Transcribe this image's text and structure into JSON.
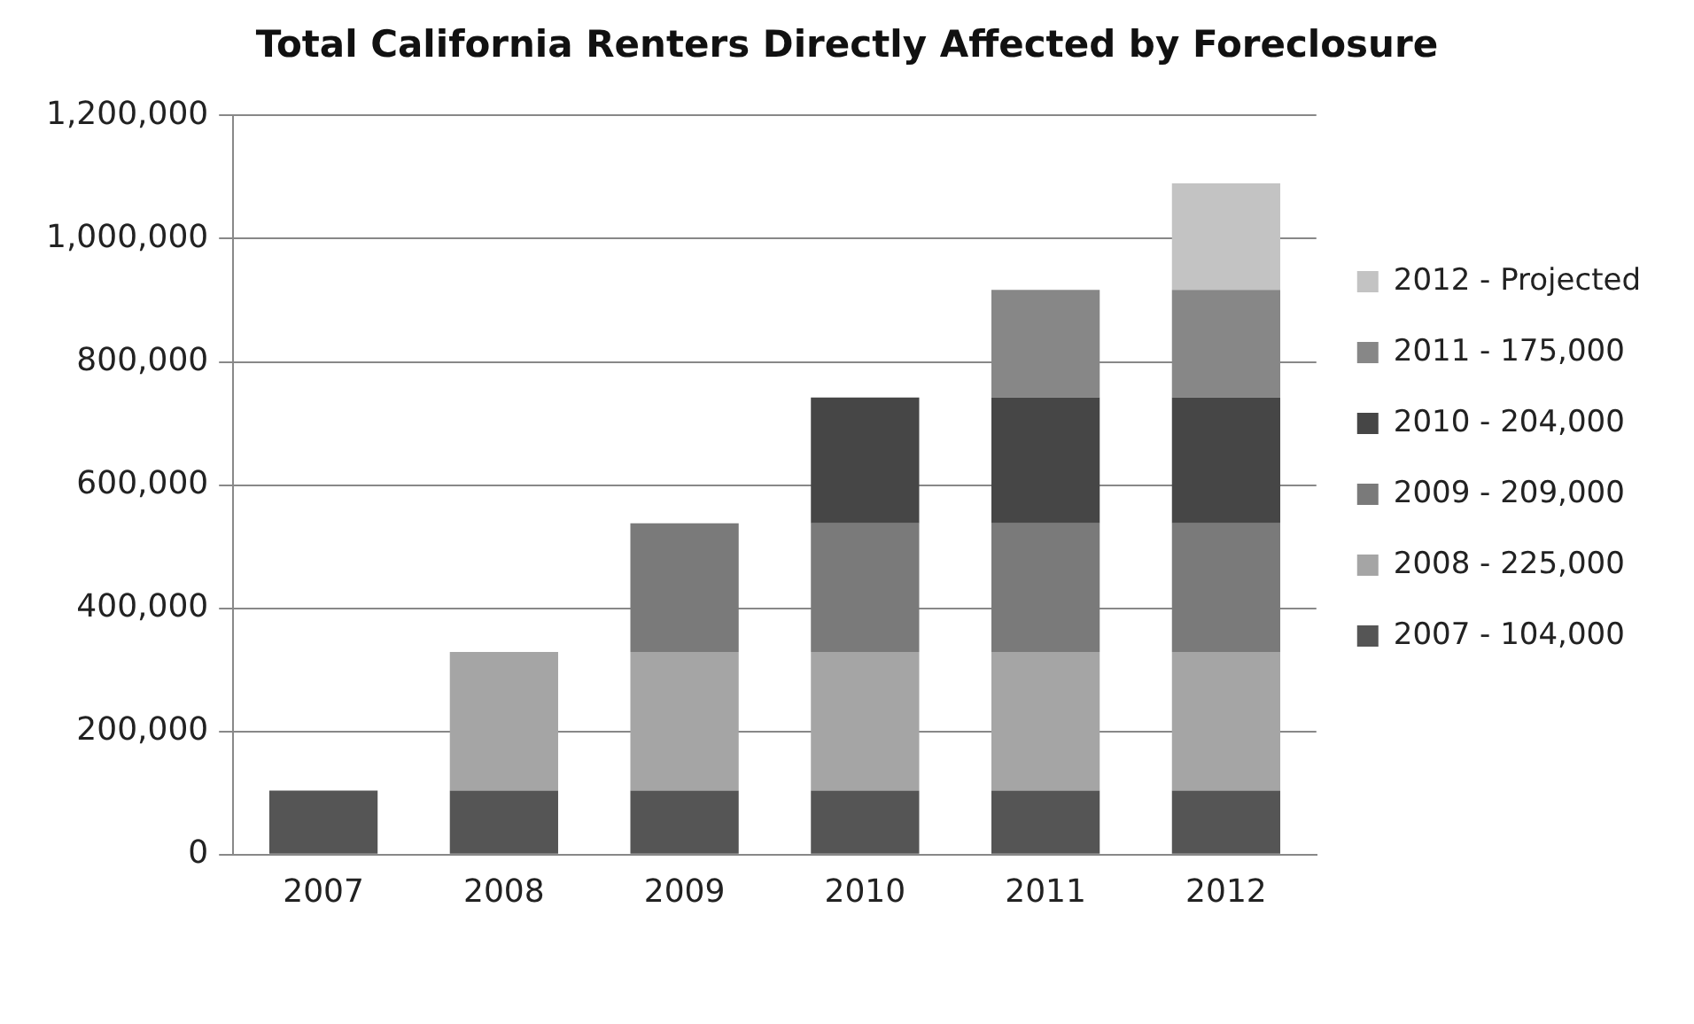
{
  "chart_data": {
    "type": "bar",
    "title": "Total California Renters Directly Affected by Foreclosure",
    "categories": [
      "2007",
      "2008",
      "2009",
      "2010",
      "2011",
      "2012"
    ],
    "stacked": true,
    "series": [
      {
        "name": "2007 - 104,000",
        "color": "#555555",
        "values": [
          104000,
          104000,
          104000,
          104000,
          104000,
          104000
        ]
      },
      {
        "name": "2008 - 225,000",
        "color": "#a5a5a5",
        "values": [
          null,
          225000,
          225000,
          225000,
          225000,
          225000
        ]
      },
      {
        "name": "2009 - 209,000",
        "color": "#7a7a7a",
        "values": [
          null,
          null,
          209000,
          209000,
          209000,
          209000
        ]
      },
      {
        "name": "2010 - 204,000",
        "color": "#464646",
        "values": [
          null,
          null,
          null,
          204000,
          204000,
          204000
        ]
      },
      {
        "name": "2011 - 175,000",
        "color": "#878787",
        "values": [
          null,
          null,
          null,
          null,
          175000,
          175000
        ]
      },
      {
        "name": "2012 - Projected",
        "color": "#c3c3c3",
        "values": [
          null,
          null,
          null,
          null,
          null,
          173000
        ]
      }
    ],
    "ylim": [
      0,
      1200000
    ],
    "yticks": [
      {
        "value": 0,
        "label": "0"
      },
      {
        "value": 200000,
        "label": "200,000"
      },
      {
        "value": 400000,
        "label": "400,000"
      },
      {
        "value": 600000,
        "label": "600,000"
      },
      {
        "value": 800000,
        "label": "800,000"
      },
      {
        "value": 1000000,
        "label": "1,000,000"
      },
      {
        "value": 1200000,
        "label": "1,200,000"
      }
    ],
    "grid": "y",
    "legend": "right"
  }
}
